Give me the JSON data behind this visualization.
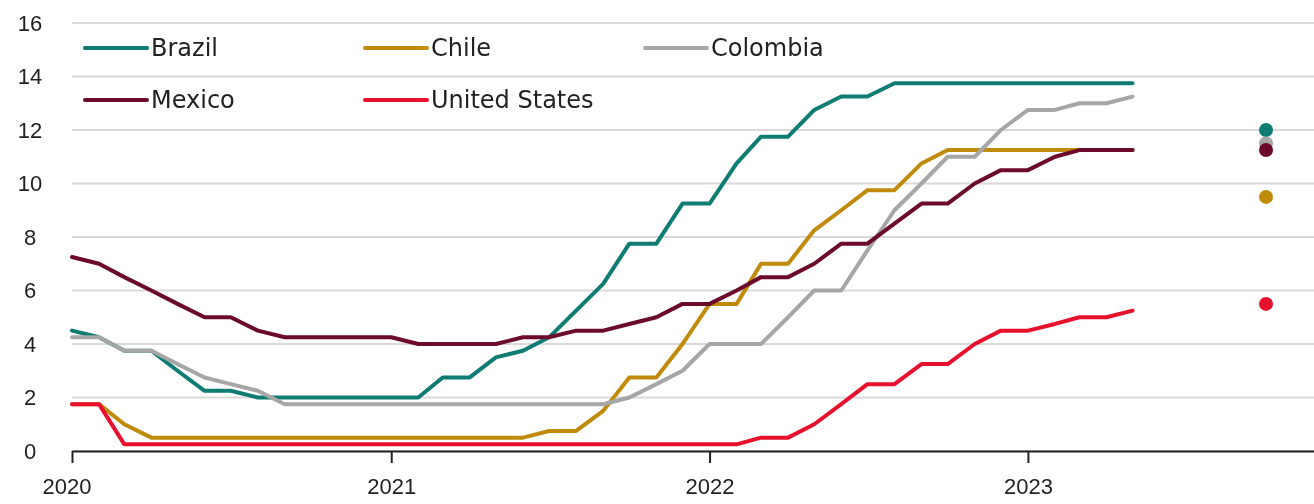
{
  "chart_data": {
    "type": "line",
    "x": [
      "2020-01",
      "2020-02",
      "2020-03",
      "2020-04",
      "2020-05",
      "2020-06",
      "2020-07",
      "2020-08",
      "2020-09",
      "2020-10",
      "2020-11",
      "2020-12",
      "2021-01",
      "2021-02",
      "2021-03",
      "2021-04",
      "2021-05",
      "2021-06",
      "2021-07",
      "2021-08",
      "2021-09",
      "2021-10",
      "2021-11",
      "2021-12",
      "2022-01",
      "2022-02",
      "2022-03",
      "2022-04",
      "2022-05",
      "2022-06",
      "2022-07",
      "2022-08",
      "2022-09",
      "2022-10",
      "2022-11",
      "2022-12",
      "2023-01",
      "2023-02",
      "2023-03",
      "2023-04",
      "2023-05"
    ],
    "series": [
      {
        "name": "Brazil",
        "color": "#0e7c73",
        "values": [
          4.5,
          4.25,
          3.75,
          3.75,
          3.0,
          2.25,
          2.25,
          2.0,
          2.0,
          2.0,
          2.0,
          2.0,
          2.0,
          2.0,
          2.75,
          2.75,
          3.5,
          3.75,
          4.25,
          5.25,
          6.25,
          7.75,
          7.75,
          9.25,
          9.25,
          10.75,
          11.75,
          11.75,
          12.75,
          13.25,
          13.25,
          13.75,
          13.75,
          13.75,
          13.75,
          13.75,
          13.75,
          13.75,
          13.75,
          13.75,
          13.75
        ]
      },
      {
        "name": "Chile",
        "color": "#c08a0b",
        "values": [
          1.75,
          1.75,
          1.0,
          0.5,
          0.5,
          0.5,
          0.5,
          0.5,
          0.5,
          0.5,
          0.5,
          0.5,
          0.5,
          0.5,
          0.5,
          0.5,
          0.5,
          0.5,
          0.75,
          0.75,
          1.5,
          2.75,
          2.75,
          4.0,
          5.5,
          5.5,
          7.0,
          7.0,
          8.25,
          9.0,
          9.75,
          9.75,
          10.75,
          11.25,
          11.25,
          11.25,
          11.25,
          11.25,
          11.25,
          11.25,
          11.25
        ]
      },
      {
        "name": "Colombia",
        "color": "#a6a6a6",
        "values": [
          4.25,
          4.25,
          3.75,
          3.75,
          3.25,
          2.75,
          2.5,
          2.25,
          1.75,
          1.75,
          1.75,
          1.75,
          1.75,
          1.75,
          1.75,
          1.75,
          1.75,
          1.75,
          1.75,
          1.75,
          1.75,
          2.0,
          2.5,
          3.0,
          4.0,
          4.0,
          4.0,
          5.0,
          6.0,
          6.0,
          7.5,
          9.0,
          10.0,
          11.0,
          11.0,
          12.0,
          12.75,
          12.75,
          13.0,
          13.0,
          13.25
        ]
      },
      {
        "name": "Mexico",
        "color": "#6b0a2a",
        "values": [
          7.25,
          7.0,
          6.5,
          6.0,
          5.5,
          5.0,
          5.0,
          4.5,
          4.25,
          4.25,
          4.25,
          4.25,
          4.25,
          4.0,
          4.0,
          4.0,
          4.0,
          4.25,
          4.25,
          4.5,
          4.5,
          4.75,
          5.0,
          5.5,
          5.5,
          6.0,
          6.5,
          6.5,
          7.0,
          7.75,
          7.75,
          8.5,
          9.25,
          9.25,
          10.0,
          10.5,
          10.5,
          11.0,
          11.25,
          11.25,
          11.25
        ]
      },
      {
        "name": "United States",
        "color": "#e8112d",
        "values": [
          1.75,
          1.75,
          0.25,
          0.25,
          0.25,
          0.25,
          0.25,
          0.25,
          0.25,
          0.25,
          0.25,
          0.25,
          0.25,
          0.25,
          0.25,
          0.25,
          0.25,
          0.25,
          0.25,
          0.25,
          0.25,
          0.25,
          0.25,
          0.25,
          0.25,
          0.25,
          0.5,
          0.5,
          1.0,
          1.75,
          2.5,
          2.5,
          3.25,
          3.25,
          4.0,
          4.5,
          4.5,
          4.75,
          5.0,
          5.0,
          5.25
        ]
      },
      {
        "type": "scatter",
        "color": "#0e7c73",
        "x": [
          "2023-10"
        ],
        "values": [
          12.0
        ]
      },
      {
        "type": "scatter",
        "color": "#a6a6a6",
        "x": [
          "2023-10"
        ],
        "values": [
          11.5
        ]
      },
      {
        "type": "scatter",
        "color": "#6b0a2a",
        "x": [
          "2023-10"
        ],
        "values": [
          11.25
        ]
      },
      {
        "type": "scatter",
        "color": "#c08a0b",
        "x": [
          "2023-10"
        ],
        "values": [
          9.5
        ]
      },
      {
        "type": "scatter",
        "color": "#e8112d",
        "x": [
          "2023-10"
        ],
        "values": [
          5.5
        ]
      }
    ],
    "xlim": [
      "2020-01",
      "2023-11-25"
    ],
    "xticks": [
      {
        "value": "2020-01",
        "label": "2020"
      },
      {
        "value": "2021-01",
        "label": "2021"
      },
      {
        "value": "2022-01",
        "label": "2022"
      },
      {
        "value": "2023-01",
        "label": "2023"
      }
    ],
    "ylim": [
      0,
      16
    ],
    "yticks": [
      0,
      2,
      4,
      6,
      8,
      10,
      12,
      14,
      16
    ],
    "grid": "y",
    "legend": "top left"
  }
}
